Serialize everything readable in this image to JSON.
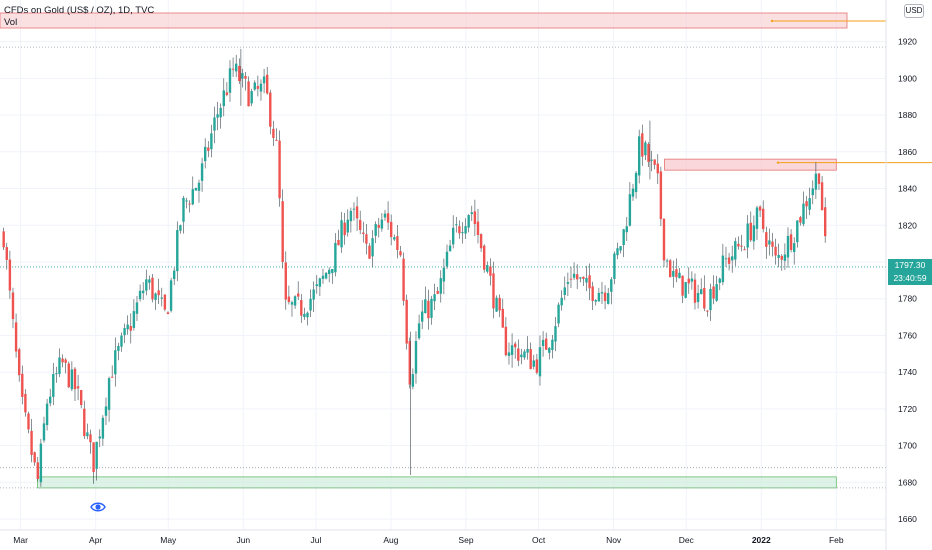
{
  "legend": {
    "symbol_line": "CFDs on Gold (US$ / OZ), 1D, TVC",
    "volume_label": "Vol"
  },
  "price_axis": {
    "currency": "USD",
    "last_price": "1797.30",
    "countdown": "23:40:59"
  },
  "colors": {
    "up": "#26a69a",
    "down": "#ef5350",
    "resistance_zone": "#f7c6cb",
    "support_zone": "#cfeedd",
    "ray": "#f59f1a",
    "grid": "#f0f3fa"
  },
  "icons": {
    "visibility": "eye-icon"
  },
  "chart_data": {
    "type": "candlestick",
    "title": "CFDs on Gold (US$ / OZ), 1D, TVC",
    "xlabel": "",
    "ylabel": "",
    "x_ticks": [
      "Mar",
      "Apr",
      "May",
      "Jun",
      "Jul",
      "Aug",
      "Sep",
      "Oct",
      "Nov",
      "Dec",
      "2022",
      "Feb"
    ],
    "y_ticks": [
      1660,
      1680,
      1700,
      1720,
      1740,
      1760,
      1780,
      1800,
      1820,
      1840,
      1860,
      1880,
      1900,
      1920
    ],
    "ylim": [
      1647,
      1947
    ],
    "grid": true,
    "last_close": 1797.3,
    "annotations": [
      {
        "kind": "resistance_zone",
        "from": "2021-11-22",
        "to": "2022-02-01",
        "low": 1850,
        "high": 1856
      },
      {
        "kind": "support_zone",
        "from": "2021-03-08",
        "to": "2022-02-01",
        "low": 1677,
        "high": 1683
      },
      {
        "kind": "horizontal_line",
        "value": 1917
      },
      {
        "kind": "horizontal_line",
        "value": 1688
      },
      {
        "kind": "horizontal_line",
        "value": 1677
      }
    ],
    "series": [
      {
        "type": "close",
        "points": [
          [
            "2021-02-22",
            1815
          ],
          [
            "2021-02-25",
            1775
          ],
          [
            "2021-03-01",
            1725
          ],
          [
            "2021-03-08",
            1680
          ],
          [
            "2021-03-12",
            1725
          ],
          [
            "2021-03-18",
            1745
          ],
          [
            "2021-03-24",
            1730
          ],
          [
            "2021-03-31",
            1690
          ],
          [
            "2021-04-07",
            1740
          ],
          [
            "2021-04-15",
            1765
          ],
          [
            "2021-04-22",
            1790
          ],
          [
            "2021-04-30",
            1770
          ],
          [
            "2021-05-07",
            1830
          ],
          [
            "2021-05-14",
            1845
          ],
          [
            "2021-05-21",
            1880
          ],
          [
            "2021-05-28",
            1905
          ],
          [
            "2021-06-04",
            1890
          ],
          [
            "2021-06-10",
            1895
          ],
          [
            "2021-06-15",
            1860
          ],
          [
            "2021-06-18",
            1775
          ],
          [
            "2021-06-25",
            1775
          ],
          [
            "2021-07-02",
            1785
          ],
          [
            "2021-07-09",
            1805
          ],
          [
            "2021-07-15",
            1830
          ],
          [
            "2021-07-22",
            1805
          ],
          [
            "2021-07-29",
            1825
          ],
          [
            "2021-08-05",
            1805
          ],
          [
            "2021-08-09",
            1735
          ],
          [
            "2021-08-13",
            1770
          ],
          [
            "2021-08-20",
            1780
          ],
          [
            "2021-08-27",
            1815
          ],
          [
            "2021-09-03",
            1830
          ],
          [
            "2021-09-10",
            1795
          ],
          [
            "2021-09-17",
            1755
          ],
          [
            "2021-09-24",
            1750
          ],
          [
            "2021-09-30",
            1745
          ],
          [
            "2021-10-06",
            1760
          ],
          [
            "2021-10-14",
            1795
          ],
          [
            "2021-10-21",
            1785
          ],
          [
            "2021-10-29",
            1785
          ],
          [
            "2021-11-05",
            1815
          ],
          [
            "2021-11-12",
            1865
          ],
          [
            "2021-11-19",
            1845
          ],
          [
            "2021-11-22",
            1805
          ],
          [
            "2021-11-26",
            1790
          ],
          [
            "2021-12-03",
            1785
          ],
          [
            "2021-12-10",
            1780
          ],
          [
            "2021-12-17",
            1800
          ],
          [
            "2021-12-24",
            1810
          ],
          [
            "2021-12-31",
            1825
          ],
          [
            "2022-01-07",
            1800
          ],
          [
            "2022-01-14",
            1815
          ],
          [
            "2022-01-20",
            1835
          ],
          [
            "2022-01-25",
            1850
          ],
          [
            "2022-01-28",
            1797
          ]
        ]
      }
    ]
  }
}
